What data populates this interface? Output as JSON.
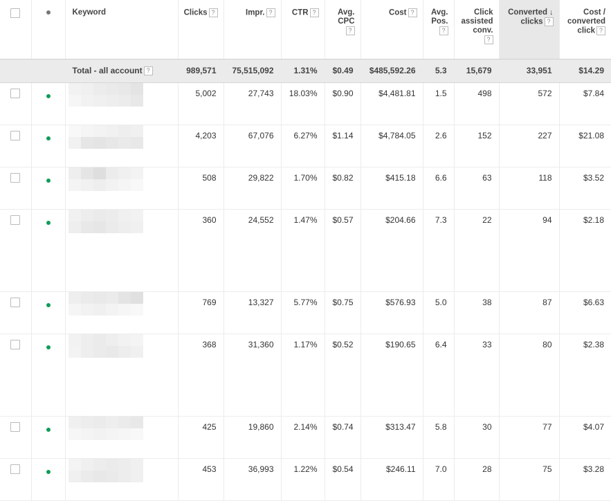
{
  "headers": {
    "keyword": "Keyword",
    "clicks": "Clicks",
    "impr": "Impr.",
    "ctr": "CTR",
    "avg_cpc_1": "Avg.",
    "avg_cpc_2": "CPC",
    "cost": "Cost",
    "avg_pos_1": "Avg.",
    "avg_pos_2": "Pos.",
    "click_assisted_1": "Click",
    "click_assisted_2": "assisted",
    "click_assisted_3": "conv.",
    "converted_1": "Converted",
    "converted_2": "clicks",
    "cost_conv_1": "Cost /",
    "cost_conv_2": "converted",
    "cost_conv_3": "click",
    "help": "?"
  },
  "total": {
    "label": "Total - all account",
    "clicks": "989,571",
    "impr": "75,515,092",
    "ctr": "1.31%",
    "avg_cpc": "$0.49",
    "cost": "$485,592.26",
    "avg_pos": "5.3",
    "click_assisted": "15,679",
    "converted": "33,951",
    "cost_conv": "$14.29"
  },
  "rows": [
    {
      "clicks": "5,002",
      "impr": "27,743",
      "ctr": "18.03%",
      "cpc": "$0.90",
      "cost": "$4,481.81",
      "pos": "1.5",
      "assisted": "498",
      "converted": "572",
      "cost_conv": "$7.84"
    },
    {
      "clicks": "4,203",
      "impr": "67,076",
      "ctr": "6.27%",
      "cpc": "$1.14",
      "cost": "$4,784.05",
      "pos": "2.6",
      "assisted": "152",
      "converted": "227",
      "cost_conv": "$21.08"
    },
    {
      "clicks": "508",
      "impr": "29,822",
      "ctr": "1.70%",
      "cpc": "$0.82",
      "cost": "$415.18",
      "pos": "6.6",
      "assisted": "63",
      "converted": "118",
      "cost_conv": "$3.52"
    },
    {
      "clicks": "360",
      "impr": "24,552",
      "ctr": "1.47%",
      "cpc": "$0.57",
      "cost": "$204.66",
      "pos": "7.3",
      "assisted": "22",
      "converted": "94",
      "cost_conv": "$2.18"
    },
    {
      "clicks": "769",
      "impr": "13,327",
      "ctr": "5.77%",
      "cpc": "$0.75",
      "cost": "$576.93",
      "pos": "5.0",
      "assisted": "38",
      "converted": "87",
      "cost_conv": "$6.63"
    },
    {
      "clicks": "368",
      "impr": "31,360",
      "ctr": "1.17%",
      "cpc": "$0.52",
      "cost": "$190.65",
      "pos": "6.4",
      "assisted": "33",
      "converted": "80",
      "cost_conv": "$2.38"
    },
    {
      "clicks": "425",
      "impr": "19,860",
      "ctr": "2.14%",
      "cpc": "$0.74",
      "cost": "$313.47",
      "pos": "5.8",
      "assisted": "30",
      "converted": "77",
      "cost_conv": "$4.07"
    },
    {
      "clicks": "453",
      "impr": "36,993",
      "ctr": "1.22%",
      "cpc": "$0.54",
      "cost": "$246.11",
      "pos": "7.0",
      "assisted": "28",
      "converted": "75",
      "cost_conv": "$3.28"
    }
  ],
  "colors": {
    "status_enabled": "#0f9d58",
    "sorted_column_bg": "#e8e8e8",
    "total_row_bg": "#ebebeb"
  }
}
